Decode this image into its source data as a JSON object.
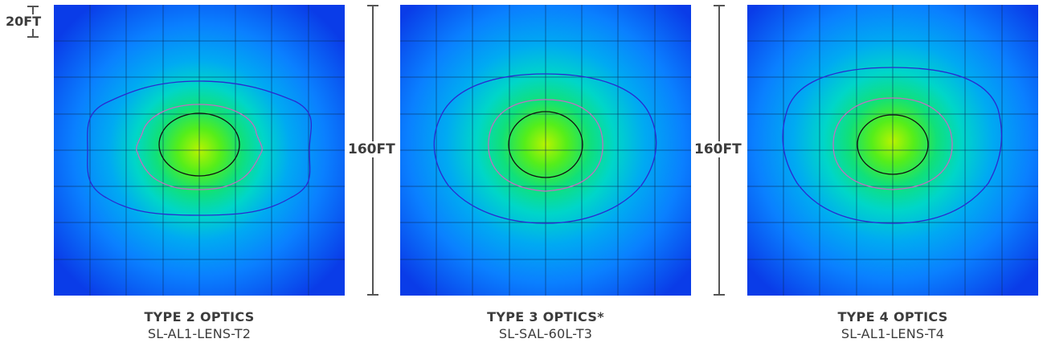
{
  "scale": {
    "label": "20FT"
  },
  "panels": [
    {
      "title": "TYPE 2 OPTICS",
      "part": "SL-AL1-LENS-T2"
    },
    {
      "title": "TYPE 3 OPTICS*",
      "part": "SL-SAL-60L-T3"
    },
    {
      "title": "TYPE 4 OPTICS",
      "part": "SL-AL1-LENS-T4"
    }
  ],
  "dimensions": [
    {
      "label": "160FT"
    },
    {
      "label": "160FT"
    }
  ],
  "colors": {
    "outer_contour": "#2a2ad0",
    "mid_contour": "#c070c0",
    "inner_contour": "#111111",
    "grid": "#0a2a55",
    "text": "#3c3c3c"
  }
}
